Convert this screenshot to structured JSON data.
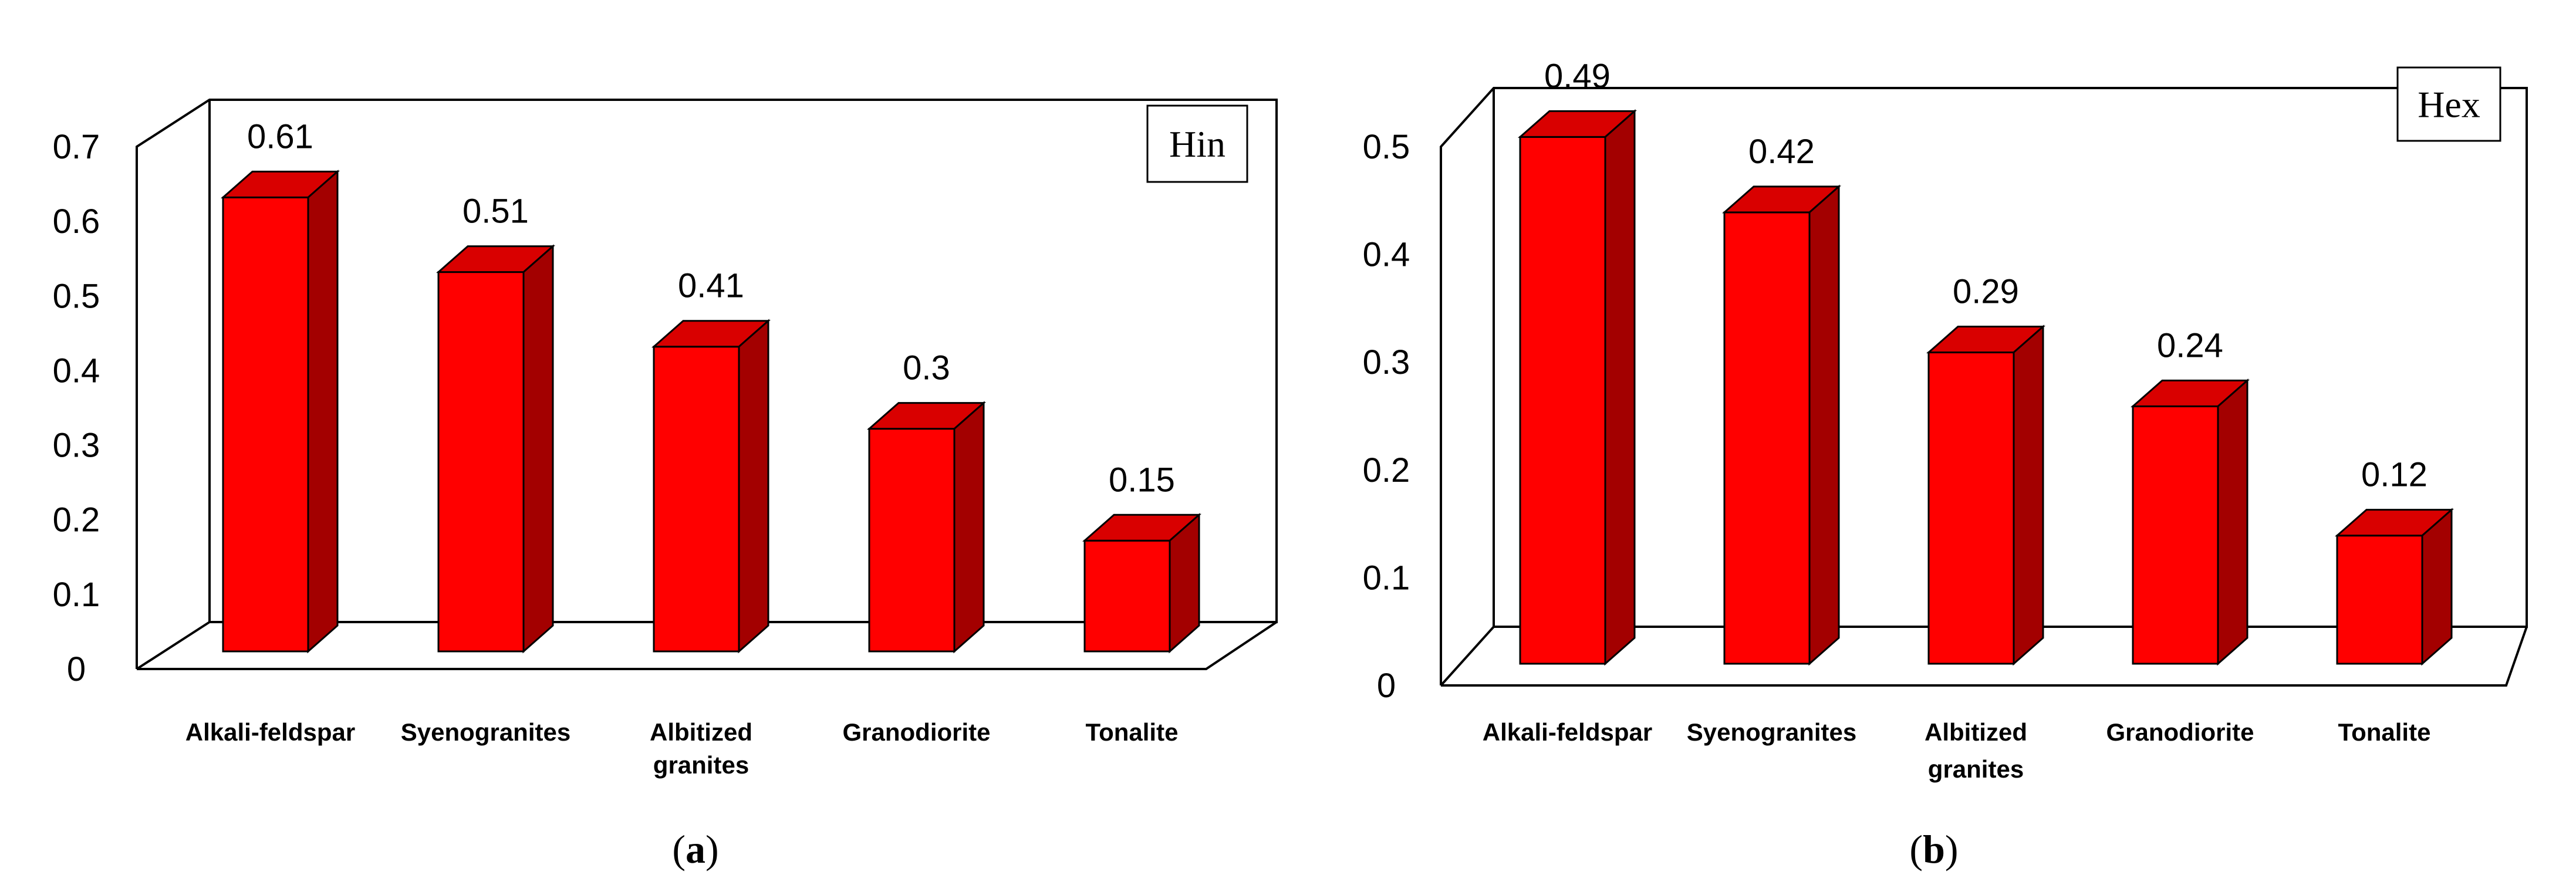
{
  "colors": {
    "bar_front": "#ff0000",
    "bar_top": "#d90000",
    "bar_side": "#a30000",
    "edge": "#000000"
  },
  "chart_data": [
    {
      "type": "bar",
      "panel": "a",
      "title": "",
      "legend": "Hin",
      "legend_position": "top-right",
      "categories": [
        "Alkali-feldspar",
        "Syenogranites",
        "Albitized granites",
        "Granodiorite",
        "Tonalite"
      ],
      "category_labels": [
        [
          "Alkali-feldspar"
        ],
        [
          "Syenogranites"
        ],
        [
          "Albitized",
          "granites"
        ],
        [
          "Granodiorite"
        ],
        [
          "Tonalite"
        ]
      ],
      "values": [
        0.61,
        0.51,
        0.41,
        0.3,
        0.15
      ],
      "value_labels": [
        "0.61",
        "0.51",
        "0.41",
        "0.3",
        "0.15"
      ],
      "yticks": [
        0,
        0.1,
        0.2,
        0.3,
        0.4,
        0.5,
        0.6,
        0.7
      ],
      "ytick_labels": [
        "0",
        "0.1",
        "0.2",
        "0.3",
        "0.4",
        "0.5",
        "0.6",
        "0.7"
      ],
      "ylim": [
        0,
        0.7
      ],
      "xlabel": "",
      "ylabel": "",
      "grid": false,
      "caption": {
        "open": "(",
        "letter": "a",
        "close": ")"
      }
    },
    {
      "type": "bar",
      "panel": "b",
      "title": "",
      "legend": "Hex",
      "legend_position": "top-right",
      "categories": [
        "Alkali-feldspar",
        "Syenogranites",
        "Albitized granites",
        "Granodiorite",
        "Tonalite"
      ],
      "category_labels": [
        [
          "Alkali-feldspar"
        ],
        [
          "Syenogranites"
        ],
        [
          "Albitized",
          "granites"
        ],
        [
          "Granodiorite"
        ],
        [
          "Tonalite"
        ]
      ],
      "values": [
        0.49,
        0.42,
        0.29,
        0.24,
        0.12
      ],
      "value_labels": [
        "0.49",
        "0.42",
        "0.29",
        "0.24",
        "0.12"
      ],
      "yticks": [
        0,
        0.1,
        0.2,
        0.3,
        0.4,
        0.5
      ],
      "ytick_labels": [
        "0",
        "0.1",
        "0.2",
        "0.3",
        "0.4",
        "0.5"
      ],
      "ylim": [
        0,
        0.5
      ],
      "xlabel": "",
      "ylabel": "",
      "grid": false,
      "caption": {
        "open": "(",
        "letter": "b",
        "close": ")"
      }
    }
  ]
}
